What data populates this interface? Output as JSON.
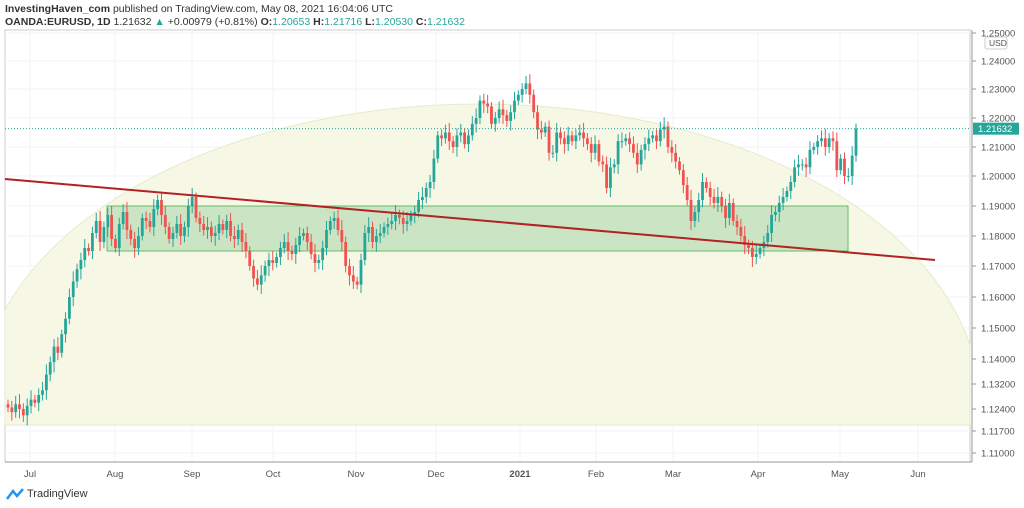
{
  "header": {
    "author": "InvestingHaven_com",
    "published": "published on TradingView.com, May 08, 2021 16:04:06 UTC",
    "symbol": "OANDA:EURUSD, 1D",
    "last": "1.21632",
    "change": "+0.00979 (+0.81%)",
    "o_label": "O:",
    "o": "1.20653",
    "h_label": "H:",
    "h": "1.21716",
    "l_label": "L:",
    "l": "1.20530",
    "c_label": "C:",
    "c": "1.21632"
  },
  "brand": "TradingView",
  "chart_data": {
    "type": "candlestick",
    "currency": "USD",
    "last_price_label": "1.21632",
    "colors": {
      "up": "#26a69a",
      "down": "#ef5350",
      "trendline": "#b22222",
      "zone": "#a5d6a7",
      "arc": "#f7f7e6"
    },
    "x_ticks": [
      "Jul",
      "Aug",
      "Sep",
      "Oct",
      "Nov",
      "Dec",
      "2021",
      "Feb",
      "Mar",
      "Apr",
      "May",
      "Jun"
    ],
    "y_ticks": [
      "1.25000",
      "1.24000",
      "1.23000",
      "1.22000",
      "1.21000",
      "1.20000",
      "1.19000",
      "1.18000",
      "1.17000",
      "1.16000",
      "1.15000",
      "1.14000",
      "1.13200",
      "1.12400",
      "1.11700",
      "1.11000"
    ],
    "support_zone": [
      1.175,
      1.19
    ],
    "trendline": {
      "from": 1.199,
      "to": 1.172
    },
    "closes": [
      1.1245,
      1.123,
      1.1255,
      1.124,
      1.122,
      1.125,
      1.127,
      1.126,
      1.1285,
      1.13,
      1.135,
      1.139,
      1.144,
      1.142,
      1.148,
      1.153,
      1.16,
      1.165,
      1.169,
      1.172,
      1.176,
      1.175,
      1.181,
      1.185,
      1.178,
      1.183,
      1.187,
      1.179,
      1.176,
      1.184,
      1.188,
      1.182,
      1.179,
      1.176,
      1.18,
      1.186,
      1.185,
      1.183,
      1.189,
      1.192,
      1.187,
      1.183,
      1.179,
      1.181,
      1.184,
      1.18,
      1.183,
      1.19,
      1.193,
      1.186,
      1.184,
      1.182,
      1.183,
      1.18,
      1.181,
      1.184,
      1.182,
      1.185,
      1.18,
      1.179,
      1.182,
      1.178,
      1.175,
      1.17,
      1.166,
      1.164,
      1.167,
      1.17,
      1.172,
      1.171,
      1.173,
      1.176,
      1.178,
      1.175,
      1.174,
      1.177,
      1.18,
      1.181,
      1.178,
      1.174,
      1.171,
      1.172,
      1.176,
      1.182,
      1.185,
      1.186,
      1.182,
      1.178,
      1.17,
      1.167,
      1.165,
      1.164,
      1.172,
      1.181,
      1.183,
      1.178,
      1.18,
      1.181,
      1.183,
      1.184,
      1.185,
      1.187,
      1.186,
      1.184,
      1.185,
      1.187,
      1.188,
      1.192,
      1.193,
      1.196,
      1.198,
      1.206,
      1.214,
      1.213,
      1.215,
      1.212,
      1.21,
      1.214,
      1.215,
      1.211,
      1.214,
      1.218,
      1.22,
      1.226,
      1.225,
      1.224,
      1.218,
      1.22,
      1.223,
      1.221,
      1.219,
      1.222,
      1.226,
      1.228,
      1.23,
      1.232,
      1.228,
      1.222,
      1.216,
      1.215,
      1.217,
      1.208,
      1.208,
      1.215,
      1.213,
      1.211,
      1.214,
      1.212,
      1.214,
      1.215,
      1.213,
      1.211,
      1.208,
      1.211,
      1.205,
      1.204,
      1.196,
      1.203,
      1.204,
      1.212,
      1.212,
      1.213,
      1.211,
      1.208,
      1.204,
      1.209,
      1.211,
      1.213,
      1.214,
      1.212,
      1.216,
      1.217,
      1.21,
      1.208,
      1.205,
      1.202,
      1.197,
      1.192,
      1.185,
      1.188,
      1.192,
      1.198,
      1.196,
      1.193,
      1.191,
      1.193,
      1.19,
      1.186,
      1.191,
      1.185,
      1.183,
      1.18,
      1.177,
      1.176,
      1.173,
      1.174,
      1.176,
      1.178,
      1.181,
      1.187,
      1.188,
      1.191,
      1.193,
      1.195,
      1.198,
      1.203,
      1.204,
      1.204,
      1.203,
      1.209,
      1.21,
      1.212,
      1.213,
      1.21,
      1.213,
      1.212,
      1.202,
      1.206,
      1.2,
      1.2,
      1.207,
      1.2163
    ]
  }
}
